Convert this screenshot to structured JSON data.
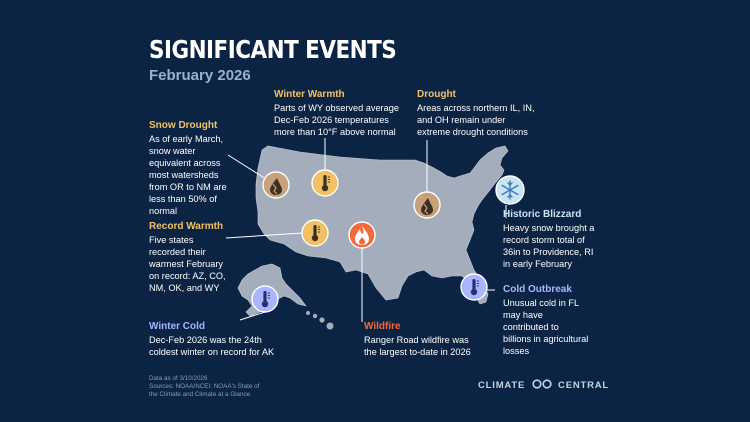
{
  "title": "SIGNIFICANT EVENTS",
  "subtitle": "February 2026",
  "events": [
    {
      "key": "winter_warmth",
      "heading": "Winter Warmth",
      "lines": [
        "Parts of WY observed average",
        "Dec-Feb 2026 temperatures",
        "more than 10°F above normal"
      ],
      "icon": "thermometer-icon",
      "color": "#f4c065"
    },
    {
      "key": "drought",
      "heading": "Drought",
      "lines": [
        "Areas across northern IL, IN,",
        "and OH remain under",
        "extreme drought conditions"
      ],
      "icon": "drought-drop-icon",
      "color": "#f4c065"
    },
    {
      "key": "snow_drought",
      "heading": "Snow Drought",
      "lines": [
        "As of early March,",
        "snow water",
        "equivalent across",
        "most watersheds",
        "from OR to NM are",
        "less than 50% of",
        "normal"
      ],
      "icon": "drought-drop-icon",
      "color": "#f4c065"
    },
    {
      "key": "record_warmth",
      "heading": "Record Warmth",
      "lines": [
        "Five states",
        "recorded their",
        "warmest February",
        "on record: AZ, CO,",
        "NM, OK, and WY"
      ],
      "icon": "thermometer-icon",
      "color": "#f4c065"
    },
    {
      "key": "historic_blizzard",
      "heading": "Historic Blizzard",
      "lines": [
        "Heavy snow brought a",
        "record storm total of",
        "36in to Providence, RI",
        "in early February"
      ],
      "icon": "snowflake-icon",
      "color": "#cbe4f5"
    },
    {
      "key": "cold_outbreak",
      "heading": "Cold Outbreak",
      "lines": [
        "Unusual cold in FL",
        "may have",
        "contributed to",
        "billions in agricultural",
        "losses"
      ],
      "icon": "thermometer-icon",
      "color": "#aab4ff"
    },
    {
      "key": "winter_cold",
      "heading": "Winter Cold",
      "lines": [
        "Dec-Feb 2026 was the 24th",
        "coldest winter on record for AK"
      ],
      "icon": "thermometer-icon",
      "color": "#aab4ff"
    },
    {
      "key": "wildfire",
      "heading": "Wildfire",
      "lines": [
        "Ranger Road wildfire was",
        "the largest to-date in 2026"
      ],
      "icon": "flame-icon",
      "color": "#f26a3b"
    }
  ],
  "footer": {
    "lines": [
      "Data as of 3/10/2026",
      "Sources: NOAA/NCEI; NOAA's State of",
      "the Climate and Climate at a Glance"
    ]
  },
  "logo": {
    "left": "CLIMATE",
    "right": "CENTRAL"
  },
  "colors": {
    "background": "#0c2444",
    "land": "#a3adbb",
    "connector": "#ffffff"
  }
}
